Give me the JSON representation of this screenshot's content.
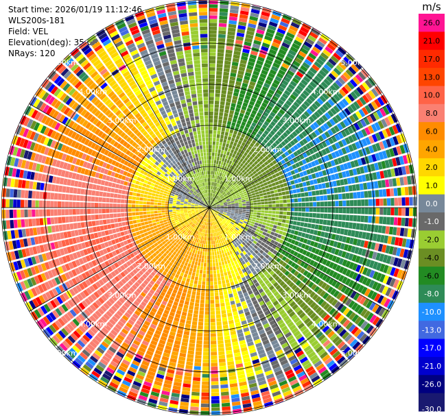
{
  "info": {
    "start_time": "Start time: 2026/01/19 11:12:46",
    "instrument": "WLS200s-181",
    "field": "Field: VEL",
    "elevation": "Elevation(deg): 35.00",
    "nrays": "NRays: 120"
  },
  "chart_data": {
    "type": "heatmap",
    "projection": "polar",
    "field": "VEL",
    "elevation_deg": 35.0,
    "n_rays": 120,
    "range_rings_km": [
      1.0,
      2.0,
      3.0,
      4.0,
      5.0
    ],
    "range_ring_labels": [
      "1.00km",
      "2.00km",
      "3.00km",
      "4.00km",
      "5.00km"
    ],
    "colorbar": {
      "unit": "m/s",
      "tick_labels": [
        "26.0",
        "21.0",
        "17.0",
        "13.0",
        "10.0",
        "8.0",
        "6.0",
        "4.0",
        "2.0",
        "1.0",
        "0.0",
        "-1.0",
        "-2.0",
        "-4.0",
        "-6.0",
        "-8.0",
        "-10.0",
        "-13.0",
        "-17.0",
        "-21.0",
        "-26.0",
        "-30.0"
      ],
      "colors": [
        "#ff1493",
        "#ff0000",
        "#ff2a00",
        "#ff4500",
        "#ff6347",
        "#fa8072",
        "#ff8c00",
        "#ffa500",
        "#ffd700",
        "#ffff00",
        "#778899",
        "#696969",
        "#9acd32",
        "#6b8e23",
        "#228b22",
        "#2e8b57",
        "#1e90ff",
        "#4169e1",
        "#0000ff",
        "#0000cd",
        "#000080",
        "#191970"
      ]
    },
    "valid_range_km": 4.5
  }
}
